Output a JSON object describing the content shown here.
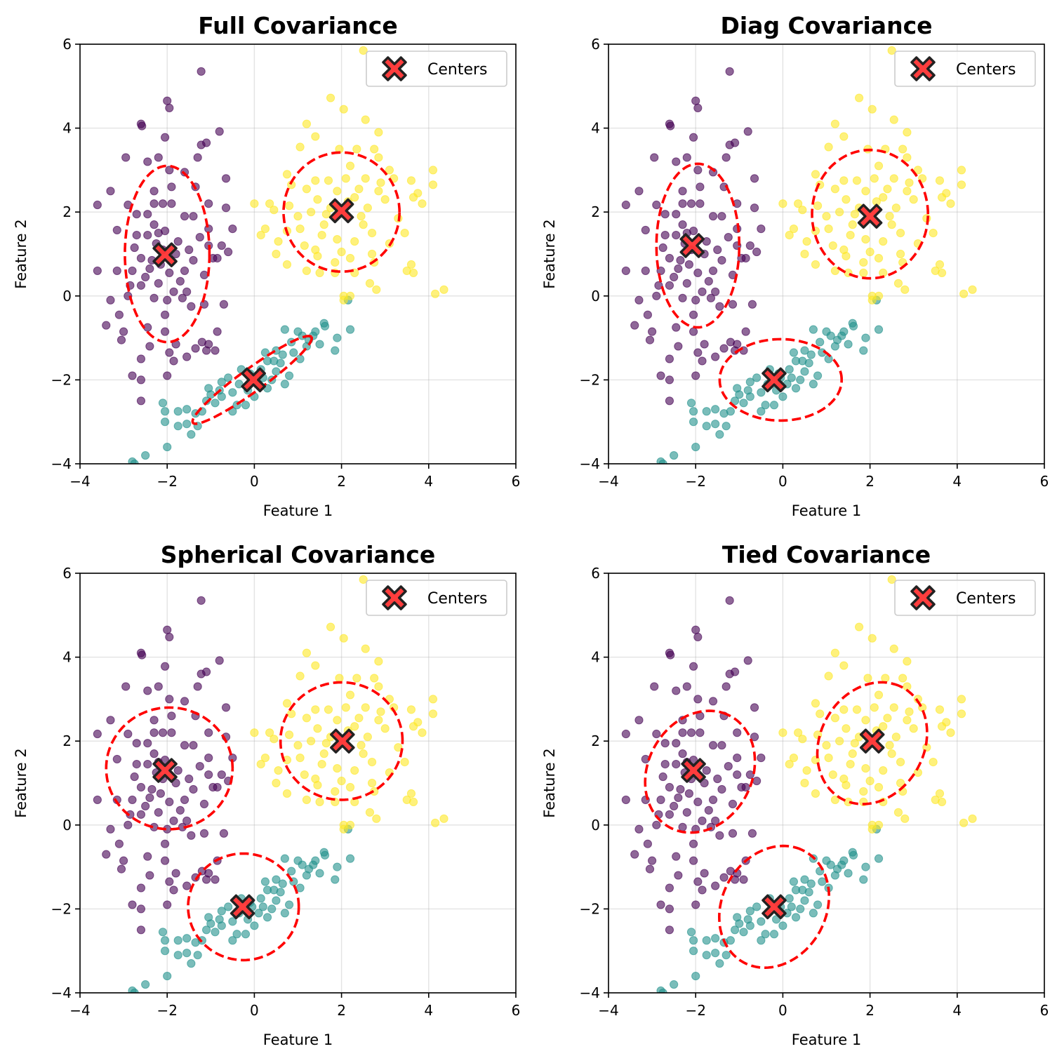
{
  "chart_data": {
    "type": "scatter",
    "layout": "2x2 grid",
    "xlabel": "Feature 1",
    "ylabel": "Feature 2",
    "xlim": [
      -4,
      6
    ],
    "ylim": [
      -4,
      6
    ],
    "xticks": [
      -4,
      -2,
      0,
      2,
      4,
      6
    ],
    "yticks": [
      -4,
      -2,
      0,
      2,
      4,
      6
    ],
    "tick_labels": [
      "−4",
      "−2",
      "0",
      "2",
      "4",
      "6"
    ],
    "grid": true,
    "legend": {
      "label": "Centers",
      "placement": "top-right",
      "marker": "X",
      "marker_color": "#ff3333",
      "marker_edge": "#222222"
    },
    "cluster_colors": {
      "purple": "#440154",
      "teal": "#21918c",
      "yellow": "#fde725"
    },
    "ellipse_color": "#ff0000",
    "points": {
      "purple": [
        [
          -1.22,
          5.35
        ],
        [
          -2.0,
          4.65
        ],
        [
          -1.95,
          4.48
        ],
        [
          -2.6,
          4.1
        ],
        [
          -2.58,
          4.05
        ],
        [
          -2.05,
          3.78
        ],
        [
          -1.22,
          3.6
        ],
        [
          -1.1,
          3.65
        ],
        [
          -0.8,
          3.92
        ],
        [
          -2.95,
          3.3
        ],
        [
          -2.2,
          3.3
        ],
        [
          -2.45,
          3.2
        ],
        [
          -1.95,
          3.0
        ],
        [
          -1.6,
          2.95
        ],
        [
          -1.3,
          3.3
        ],
        [
          -1.35,
          2.6
        ],
        [
          -0.65,
          2.8
        ],
        [
          -1.9,
          2.6
        ],
        [
          -2.3,
          2.5
        ],
        [
          -3.3,
          2.5
        ],
        [
          -3.6,
          2.17
        ],
        [
          -2.9,
          2.17
        ],
        [
          -2.3,
          2.2
        ],
        [
          -2.1,
          2.2
        ],
        [
          -1.9,
          2.2
        ],
        [
          -1.05,
          2.2
        ],
        [
          -0.65,
          2.1
        ],
        [
          -2.7,
          1.95
        ],
        [
          -2.45,
          1.95
        ],
        [
          -1.6,
          1.9
        ],
        [
          -3.15,
          1.57
        ],
        [
          -1.4,
          1.9
        ],
        [
          -1.05,
          1.6
        ],
        [
          -0.5,
          1.6
        ],
        [
          -2.3,
          1.7
        ],
        [
          -2.05,
          1.55
        ],
        [
          -1.05,
          1.2
        ],
        [
          -2.7,
          1.45
        ],
        [
          -2.45,
          1.45
        ],
        [
          -2.2,
          1.5
        ],
        [
          -0.75,
          1.2
        ],
        [
          -0.6,
          1.05
        ],
        [
          -2.1,
          1.1
        ],
        [
          -1.8,
          1.0
        ],
        [
          -1.5,
          1.1
        ],
        [
          -0.95,
          0.9
        ],
        [
          -2.6,
          0.9
        ],
        [
          -2.35,
          0.85
        ],
        [
          -1.4,
          0.85
        ],
        [
          -0.85,
          0.9
        ],
        [
          -3.6,
          0.6
        ],
        [
          -3.15,
          0.6
        ],
        [
          -2.8,
          0.6
        ],
        [
          -2.4,
          0.65
        ],
        [
          -1.95,
          0.55
        ],
        [
          -1.6,
          0.6
        ],
        [
          -1.15,
          0.5
        ],
        [
          -2.85,
          0.25
        ],
        [
          -2.6,
          0.25
        ],
        [
          -2.2,
          0.3
        ],
        [
          -1.7,
          0.35
        ],
        [
          -1.55,
          0.1
        ],
        [
          -2.9,
          0.0
        ],
        [
          -3.3,
          -0.1
        ],
        [
          -2.0,
          -0.1
        ],
        [
          -1.65,
          -0.05
        ],
        [
          -1.45,
          -0.25
        ],
        [
          -2.05,
          -0.45
        ],
        [
          -3.1,
          -0.45
        ],
        [
          -3.4,
          -0.7
        ],
        [
          -1.15,
          -0.2
        ],
        [
          -0.7,
          -0.2
        ],
        [
          -3.0,
          -0.85
        ],
        [
          -2.45,
          -0.75
        ],
        [
          -2.05,
          -0.85
        ],
        [
          -1.2,
          -1.1
        ],
        [
          -1.05,
          -1.15
        ],
        [
          -0.85,
          -0.85
        ],
        [
          -3.05,
          -1.05
        ],
        [
          -2.4,
          -1.2
        ],
        [
          -1.8,
          -1.15
        ],
        [
          -1.95,
          -1.35
        ],
        [
          -2.6,
          -1.5
        ],
        [
          -1.85,
          -1.55
        ],
        [
          -1.55,
          -1.45
        ],
        [
          -1.1,
          -1.3
        ],
        [
          -0.9,
          -1.3
        ],
        [
          -2.8,
          -1.9
        ],
        [
          -2.6,
          -2.0
        ],
        [
          -2.0,
          -1.9
        ],
        [
          -2.6,
          -2.5
        ],
        [
          -1.35,
          -1.25
        ],
        [
          -2.25,
          1.25
        ],
        [
          -1.75,
          1.3
        ],
        [
          -2.5,
          0.45
        ],
        [
          -1.85,
          0.1
        ],
        [
          -2.3,
          -0.05
        ],
        [
          -2.75,
          1.15
        ],
        [
          -1.25,
          1.4
        ],
        [
          -2.15,
          0.75
        ]
      ],
      "teal": [
        [
          2.15,
          -0.1
        ],
        [
          2.2,
          -0.8
        ],
        [
          1.6,
          -0.65
        ],
        [
          1.62,
          -0.72
        ],
        [
          1.9,
          -1.0
        ],
        [
          1.85,
          -1.3
        ],
        [
          1.5,
          -1.15
        ],
        [
          1.25,
          -1.05
        ],
        [
          0.7,
          -0.8
        ],
        [
          1.0,
          -0.85
        ],
        [
          1.2,
          -1.2
        ],
        [
          0.9,
          -1.35
        ],
        [
          0.5,
          -1.3
        ],
        [
          0.3,
          -1.55
        ],
        [
          0.6,
          -1.6
        ],
        [
          0.8,
          -1.9
        ],
        [
          0.4,
          -2.0
        ],
        [
          0.1,
          -2.1
        ],
        [
          -0.1,
          -1.85
        ],
        [
          -0.3,
          -1.75
        ],
        [
          -0.6,
          -1.95
        ],
        [
          -0.5,
          -2.3
        ],
        [
          -0.75,
          -2.4
        ],
        [
          -0.9,
          -2.55
        ],
        [
          -1.1,
          -2.5
        ],
        [
          -0.4,
          -2.6
        ],
        [
          0.0,
          -2.4
        ],
        [
          -0.2,
          -2.6
        ],
        [
          -1.35,
          -2.8
        ],
        [
          -1.55,
          -2.7
        ],
        [
          -1.75,
          -2.75
        ],
        [
          -1.3,
          -3.1
        ],
        [
          -2.05,
          -3.0
        ],
        [
          -2.05,
          -2.75
        ],
        [
          -1.75,
          -3.1
        ],
        [
          -1.55,
          -3.05
        ],
        [
          -2.1,
          -2.55
        ],
        [
          -1.45,
          -3.3
        ],
        [
          -1.05,
          -2.2
        ],
        [
          -0.15,
          -2.25
        ],
        [
          0.3,
          -2.2
        ],
        [
          0.5,
          -1.8
        ],
        [
          0.15,
          -1.75
        ],
        [
          -2.0,
          -3.6
        ],
        [
          -2.5,
          -3.8
        ],
        [
          -2.8,
          -3.95
        ],
        [
          -2.75,
          -4.0
        ],
        [
          0.7,
          -2.1
        ],
        [
          1.05,
          -1.5
        ],
        [
          0.85,
          -1.1
        ],
        [
          1.35,
          -0.95
        ],
        [
          -0.75,
          -2.05
        ],
        [
          -1.2,
          -2.75
        ],
        [
          -0.5,
          -2.75
        ],
        [
          0.25,
          -1.35
        ],
        [
          0.45,
          -1.55
        ],
        [
          0.65,
          -1.4
        ],
        [
          -0.35,
          -2.1
        ],
        [
          -0.05,
          -1.95
        ],
        [
          0.2,
          -1.95
        ],
        [
          -0.8,
          -2.25
        ],
        [
          -1.0,
          -2.35
        ],
        [
          1.4,
          -0.85
        ],
        [
          1.1,
          -0.95
        ]
      ],
      "yellow": [
        [
          2.5,
          5.85
        ],
        [
          1.75,
          4.72
        ],
        [
          2.05,
          4.45
        ],
        [
          2.55,
          4.2
        ],
        [
          1.2,
          4.1
        ],
        [
          1.4,
          3.8
        ],
        [
          2.85,
          3.9
        ],
        [
          1.05,
          3.55
        ],
        [
          1.95,
          3.5
        ],
        [
          2.35,
          3.5
        ],
        [
          2.75,
          3.5
        ],
        [
          2.85,
          3.3
        ],
        [
          2.2,
          3.1
        ],
        [
          3.1,
          3.0
        ],
        [
          4.1,
          3.0
        ],
        [
          4.1,
          2.65
        ],
        [
          3.2,
          2.8
        ],
        [
          3.6,
          2.75
        ],
        [
          2.55,
          2.8
        ],
        [
          2.1,
          2.8
        ],
        [
          1.7,
          2.75
        ],
        [
          1.4,
          2.75
        ],
        [
          0.75,
          2.9
        ],
        [
          0.85,
          2.65
        ],
        [
          1.2,
          2.55
        ],
        [
          1.9,
          2.5
        ],
        [
          2.4,
          2.55
        ],
        [
          2.85,
          2.5
        ],
        [
          3.75,
          2.45
        ],
        [
          3.65,
          2.35
        ],
        [
          3.85,
          2.2
        ],
        [
          1.45,
          2.3
        ],
        [
          2.15,
          2.25
        ],
        [
          0.0,
          2.2
        ],
        [
          0.35,
          2.2
        ],
        [
          0.45,
          2.05
        ],
        [
          0.8,
          2.15
        ],
        [
          1.3,
          2.0
        ],
        [
          1.65,
          1.95
        ],
        [
          2.6,
          2.1
        ],
        [
          3.3,
          1.85
        ],
        [
          0.25,
          1.6
        ],
        [
          0.15,
          1.45
        ],
        [
          0.75,
          1.55
        ],
        [
          1.05,
          1.6
        ],
        [
          1.6,
          1.7
        ],
        [
          2.5,
          1.7
        ],
        [
          3.45,
          1.5
        ],
        [
          0.55,
          1.3
        ],
        [
          1.15,
          1.2
        ],
        [
          1.9,
          1.35
        ],
        [
          2.3,
          1.3
        ],
        [
          3.1,
          1.25
        ],
        [
          0.5,
          1.0
        ],
        [
          1.4,
          1.1
        ],
        [
          2.0,
          1.05
        ],
        [
          2.7,
          1.0
        ],
        [
          1.85,
          0.8
        ],
        [
          2.2,
          0.9
        ],
        [
          2.75,
          0.8
        ],
        [
          0.75,
          0.75
        ],
        [
          1.2,
          0.6
        ],
        [
          1.5,
          0.55
        ],
        [
          1.85,
          0.55
        ],
        [
          2.3,
          0.55
        ],
        [
          3.5,
          0.6
        ],
        [
          3.6,
          0.75
        ],
        [
          3.65,
          0.55
        ],
        [
          2.65,
          0.3
        ],
        [
          2.8,
          0.15
        ],
        [
          2.2,
          0.0
        ],
        [
          2.05,
          0.0
        ],
        [
          4.15,
          0.05
        ],
        [
          4.35,
          0.15
        ],
        [
          2.05,
          -0.1
        ],
        [
          1.45,
          0.95
        ],
        [
          2.45,
          1.9
        ],
        [
          3.0,
          2.3
        ],
        [
          1.75,
          2.1
        ],
        [
          2.3,
          2.35
        ],
        [
          1.55,
          1.45
        ],
        [
          2.7,
          1.5
        ],
        [
          1.0,
          1.9
        ],
        [
          2.9,
          2.7
        ]
      ]
    },
    "panels": [
      {
        "title": "Full Covariance",
        "centers": {
          "purple": [
            -2.05,
            0.98
          ],
          "teal": [
            -0.02,
            -2.0
          ],
          "yellow": [
            2.0,
            2.03
          ]
        },
        "ellipses": [
          {
            "cluster": "purple",
            "cx": -2.0,
            "cy": 1.0,
            "rx": 0.97,
            "ry": 2.1,
            "angle_deg": 0
          },
          {
            "cluster": "teal",
            "cx": -0.05,
            "cy": -2.0,
            "rx": 1.7,
            "ry": 0.27,
            "angle_deg": 37
          },
          {
            "cluster": "yellow",
            "cx": 2.0,
            "cy": 2.0,
            "rx": 1.33,
            "ry": 1.42,
            "angle_deg": 0
          }
        ]
      },
      {
        "title": "Diag Covariance",
        "centers": {
          "purple": [
            -2.08,
            1.2
          ],
          "teal": [
            -0.2,
            -2.0
          ],
          "yellow": [
            2.0,
            1.9
          ]
        },
        "ellipses": [
          {
            "cluster": "purple",
            "cx": -1.95,
            "cy": 1.2,
            "rx": 0.95,
            "ry": 1.95,
            "angle_deg": 0
          },
          {
            "cluster": "teal",
            "cx": -0.05,
            "cy": -2.0,
            "rx": 1.4,
            "ry": 0.97,
            "angle_deg": 0
          },
          {
            "cluster": "yellow",
            "cx": 2.0,
            "cy": 1.95,
            "rx": 1.33,
            "ry": 1.53,
            "angle_deg": 0
          }
        ]
      },
      {
        "title": "Spherical Covariance",
        "centers": {
          "purple": [
            -2.05,
            1.3
          ],
          "teal": [
            -0.27,
            -1.95
          ],
          "yellow": [
            2.02,
            2.0
          ]
        },
        "ellipses": [
          {
            "cluster": "purple",
            "cx": -1.95,
            "cy": 1.35,
            "rx": 1.45,
            "ry": 1.45,
            "angle_deg": 0
          },
          {
            "cluster": "teal",
            "cx": -0.25,
            "cy": -1.95,
            "rx": 1.27,
            "ry": 1.27,
            "angle_deg": 0
          },
          {
            "cluster": "yellow",
            "cx": 2.0,
            "cy": 2.0,
            "rx": 1.4,
            "ry": 1.4,
            "angle_deg": 0
          }
        ]
      },
      {
        "title": "Tied Covariance",
        "centers": {
          "purple": [
            -2.05,
            1.3
          ],
          "teal": [
            -0.2,
            -1.95
          ],
          "yellow": [
            2.05,
            2.0
          ]
        },
        "ellipses": [
          {
            "cluster": "purple",
            "cx": -1.9,
            "cy": 1.27,
            "rx": 1.5,
            "ry": 1.2,
            "angle_deg": 65
          },
          {
            "cluster": "teal",
            "cx": -0.2,
            "cy": -1.95,
            "rx": 1.5,
            "ry": 1.2,
            "angle_deg": 65
          },
          {
            "cluster": "yellow",
            "cx": 2.05,
            "cy": 1.95,
            "rx": 1.5,
            "ry": 1.2,
            "angle_deg": 65
          }
        ]
      }
    ]
  }
}
